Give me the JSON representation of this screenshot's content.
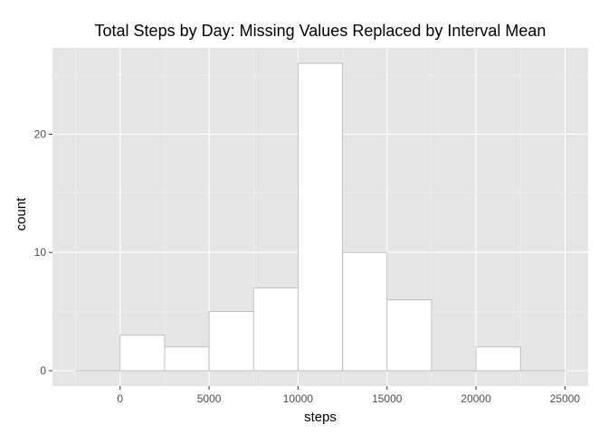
{
  "chart_data": {
    "type": "bar",
    "title": "Total Steps by Day: Missing Values Replaced by Interval Mean",
    "xlabel": "steps",
    "ylabel": "count",
    "bin_width": 2500,
    "bins": [
      {
        "start": -2500,
        "end": 0,
        "count": 0
      },
      {
        "start": 0,
        "end": 2500,
        "count": 3
      },
      {
        "start": 2500,
        "end": 5000,
        "count": 2
      },
      {
        "start": 5000,
        "end": 7500,
        "count": 5
      },
      {
        "start": 7500,
        "end": 10000,
        "count": 7
      },
      {
        "start": 10000,
        "end": 12500,
        "count": 26
      },
      {
        "start": 12500,
        "end": 15000,
        "count": 10
      },
      {
        "start": 15000,
        "end": 17500,
        "count": 6
      },
      {
        "start": 17500,
        "end": 20000,
        "count": 0
      },
      {
        "start": 20000,
        "end": 22500,
        "count": 2
      },
      {
        "start": 22500,
        "end": 25000,
        "count": 0
      }
    ],
    "xlim": [
      -3800,
      26300
    ],
    "ylim": [
      -1.3,
      27.3
    ],
    "x_ticks": [
      0,
      5000,
      10000,
      15000,
      20000,
      25000
    ],
    "y_ticks": [
      0,
      10,
      20
    ],
    "grid": true,
    "colors": {
      "panel_background": "#e5e5e5",
      "grid_major": "#ffffff",
      "grid_minor": "#f2f2f2",
      "bar_fill": "#ffffff",
      "bar_outline": "#b3b3b3",
      "tick_label": "#4d4d4d"
    }
  }
}
